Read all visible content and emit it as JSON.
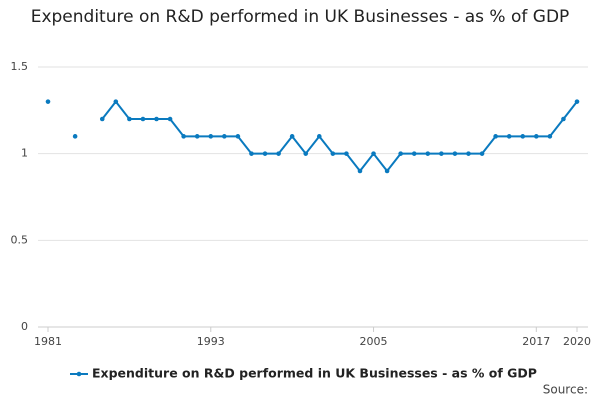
{
  "chart_data": {
    "type": "line",
    "title": "Expenditure on R&D performed in UK Businesses - as % of GDP",
    "x": [
      1981,
      1982,
      1983,
      1984,
      1985,
      1986,
      1987,
      1988,
      1989,
      1990,
      1991,
      1992,
      1993,
      1994,
      1995,
      1996,
      1997,
      1998,
      1999,
      2000,
      2001,
      2002,
      2003,
      2004,
      2005,
      2006,
      2007,
      2008,
      2009,
      2010,
      2011,
      2012,
      2013,
      2014,
      2015,
      2016,
      2017,
      2018,
      2019,
      2020
    ],
    "series": [
      {
        "name": "Expenditure on R&D performed in UK Businesses - as % of GDP",
        "color": "#0a7abf",
        "values": [
          1.3,
          null,
          1.1,
          null,
          1.2,
          1.3,
          1.2,
          1.2,
          1.2,
          1.2,
          1.1,
          1.1,
          1.1,
          1.1,
          1.1,
          1.0,
          1.0,
          1.0,
          1.1,
          1.0,
          1.1,
          1.0,
          1.0,
          0.9,
          1.0,
          0.9,
          1.0,
          1.0,
          1.0,
          1.0,
          1.0,
          1.0,
          1.0,
          1.1,
          1.1,
          1.1,
          1.1,
          1.1,
          1.2,
          1.3
        ]
      }
    ],
    "xlim": [
      1981,
      2020
    ],
    "xticks": [
      1981,
      1993,
      2005,
      2017,
      2020
    ],
    "ylim": [
      0,
      1.5
    ],
    "yticks": [
      0,
      0.5,
      1,
      1.5
    ],
    "grid": true,
    "source": "Source:"
  }
}
